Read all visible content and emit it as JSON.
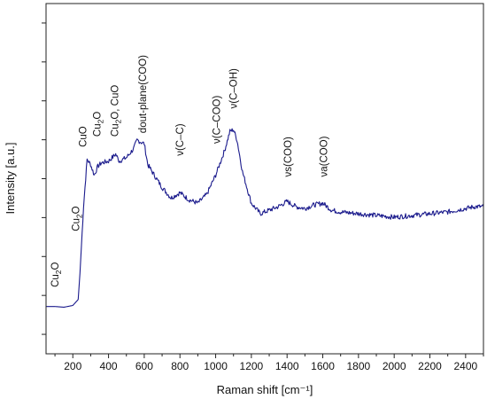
{
  "chart_data": {
    "type": "line",
    "title": "",
    "xlabel": "Raman shift [cm⁻¹]",
    "ylabel": "Intensity [a.u.]",
    "xlim": [
      50,
      2500
    ],
    "ylim": [
      0,
      10
    ],
    "x_ticks": [
      200,
      400,
      600,
      800,
      1000,
      1200,
      1400,
      1600,
      1800,
      2000,
      2200,
      2400
    ],
    "y_tick_count": 9,
    "y_tick_labels_shown": false,
    "grid": false,
    "legend": "none",
    "line_color": "#1a1a8c",
    "series": [
      {
        "x": [
          50,
          100,
          150,
          200,
          230,
          240,
          260,
          280,
          300,
          320,
          340,
          360,
          400,
          420,
          440,
          460,
          500,
          540,
          560,
          580,
          600,
          620,
          650,
          700,
          750,
          800,
          850,
          900,
          950,
          1000,
          1050,
          1080,
          1100,
          1120,
          1150,
          1200,
          1250,
          1300,
          1350,
          1400,
          1450,
          1500,
          1550,
          1600,
          1650,
          1700,
          1800,
          1900,
          2000,
          2100,
          2200,
          2300,
          2400,
          2450,
          2500
        ],
        "y": [
          1.35,
          1.35,
          1.33,
          1.38,
          1.55,
          2.3,
          4.2,
          5.55,
          5.4,
          5.1,
          5.35,
          5.45,
          5.5,
          5.6,
          5.7,
          5.5,
          5.6,
          5.85,
          6.1,
          6.05,
          6.0,
          5.4,
          5.15,
          4.75,
          4.45,
          4.6,
          4.4,
          4.3,
          4.55,
          5.1,
          5.8,
          6.35,
          6.4,
          6.1,
          5.2,
          4.3,
          4.0,
          4.1,
          4.2,
          4.35,
          4.2,
          4.15,
          4.25,
          4.3,
          4.1,
          4.05,
          4.0,
          3.95,
          3.9,
          3.95,
          4.0,
          4.05,
          4.15,
          4.2,
          4.2
        ]
      }
    ],
    "annotations": [
      {
        "text": "Cu₂O",
        "x": 100,
        "y": 1.9
      },
      {
        "text": "Cu₂O",
        "x": 215,
        "y": 3.5
      },
      {
        "text": "CuO",
        "x": 255,
        "y": 5.9
      },
      {
        "text": "Cu₂O",
        "x": 335,
        "y": 6.2
      },
      {
        "text": "Cu₂O, CuO",
        "x": 435,
        "y": 6.2
      },
      {
        "text": "dout-plane(COO)",
        "x": 590,
        "y": 6.3
      },
      {
        "text": "ν(C–C)",
        "x": 800,
        "y": 5.65
      },
      {
        "text": "ν(C–COO)",
        "x": 1005,
        "y": 6.0
      },
      {
        "text": "ν(C–OH)",
        "x": 1100,
        "y": 7.0
      },
      {
        "text": "νs(COO)",
        "x": 1405,
        "y": 5.05
      },
      {
        "text": "νa(COO)",
        "x": 1605,
        "y": 5.05
      }
    ]
  }
}
